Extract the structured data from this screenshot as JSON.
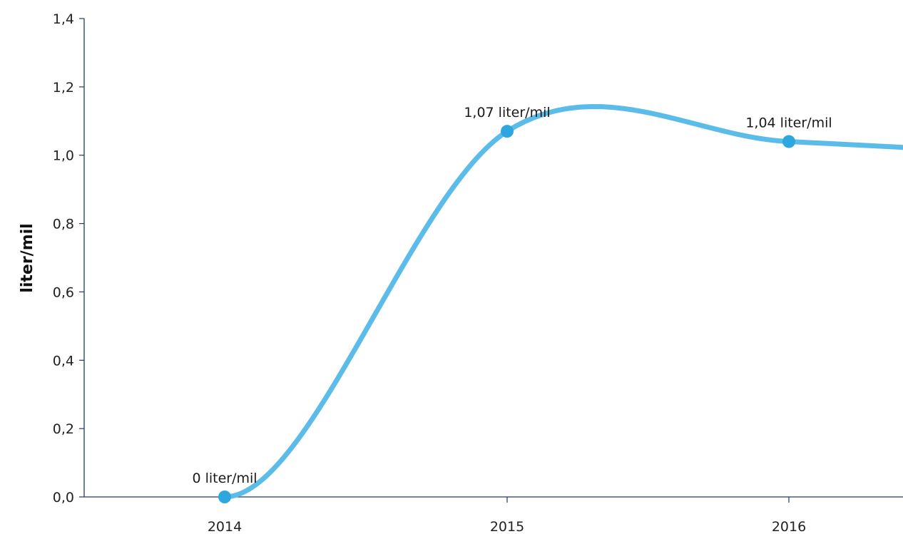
{
  "chart_data": {
    "type": "line",
    "title": "",
    "xlabel": "",
    "ylabel": "liter/mil",
    "ylim": [
      0,
      1.4
    ],
    "y_ticks": [
      "0,0",
      "0,2",
      "0,4",
      "0,6",
      "0,8",
      "1,0",
      "1,2",
      "1,4"
    ],
    "categories": [
      "2014",
      "2015",
      "2016"
    ],
    "series": [
      {
        "values": [
          0,
          1.07,
          1.04
        ],
        "data_labels": [
          "0 liter/mil",
          "1,07 liter/mil",
          "1,04 liter/mil"
        ],
        "continues_past_last_point": true,
        "value_at_right_edge": 1.01
      }
    ],
    "grid": false,
    "smooth": true,
    "line_color": "#5bbcea",
    "point_color": "#2ea6e0",
    "axis_color": "#1f3a66"
  }
}
